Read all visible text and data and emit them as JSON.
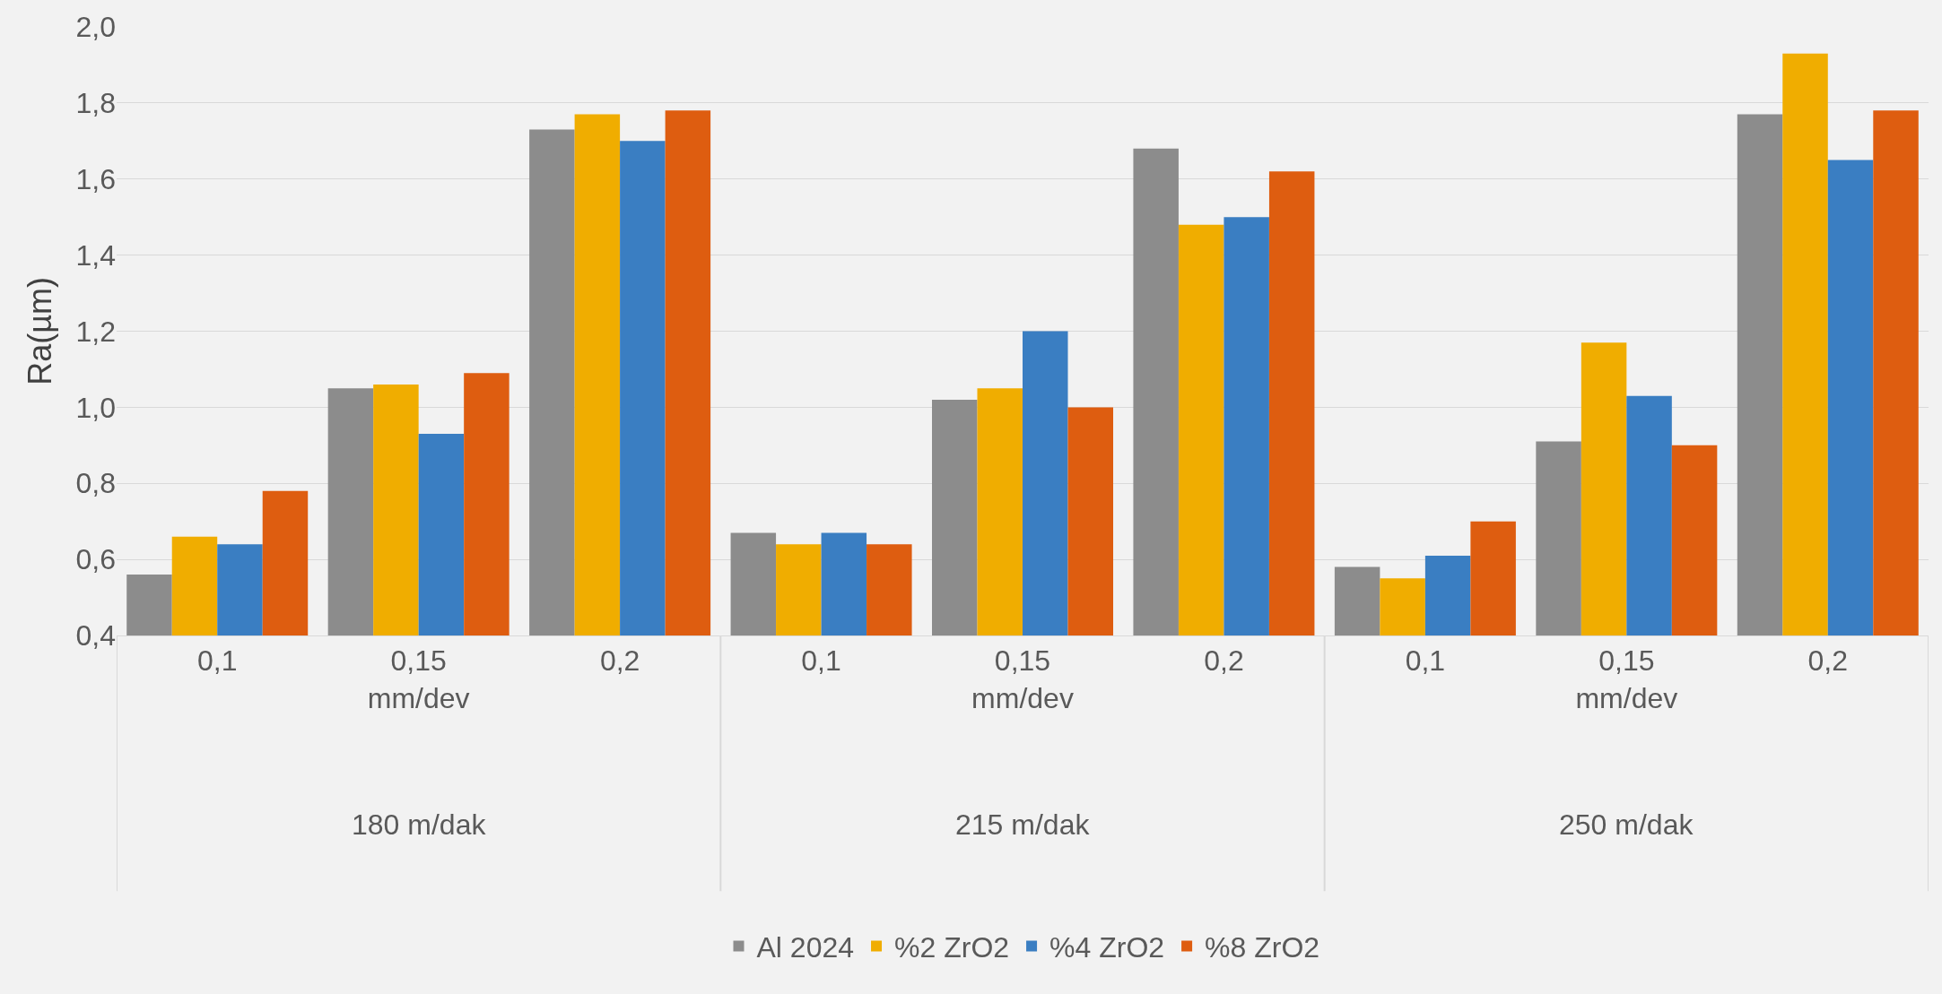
{
  "chart_data": {
    "type": "bar",
    "ylabel": "Ra(µm)",
    "categories": [
      "0,1",
      "0,15\nmm/dev",
      "0,2",
      "0,1",
      "0,15\nmm/dev",
      "0,2",
      "0,1",
      "0,15\nmm/dev",
      "0,2"
    ],
    "annotations": [
      "180 m/dak",
      "215 m/dak",
      "250 m/dak"
    ],
    "series": [
      {
        "name": "Al 2024",
        "color": "#8c8c8c",
        "values": [
          0.56,
          1.05,
          1.73,
          0.67,
          1.02,
          1.68,
          0.58,
          0.91,
          1.77
        ]
      },
      {
        "name": "%2 ZrO2",
        "color": "#f0ad00",
        "values": [
          0.66,
          1.06,
          1.77,
          0.64,
          1.05,
          1.48,
          0.55,
          1.17,
          1.93
        ]
      },
      {
        "name": "%4 ZrO2",
        "color": "#3a7ec2",
        "values": [
          0.64,
          0.93,
          1.7,
          0.67,
          1.2,
          1.5,
          0.61,
          1.03,
          1.65
        ]
      },
      {
        "name": "%8 ZrO2",
        "color": "#de5d10",
        "values": [
          0.78,
          1.09,
          1.78,
          0.64,
          1.0,
          1.62,
          0.7,
          0.9,
          1.78
        ]
      }
    ],
    "ylim": [
      0.4,
      2.0
    ],
    "yticks": [
      {
        "value": 0.4,
        "label": "0,4"
      },
      {
        "value": 0.6,
        "label": "0,6"
      },
      {
        "value": 0.8,
        "label": "0,8"
      },
      {
        "value": 1.0,
        "label": "1,0"
      },
      {
        "value": 1.2,
        "label": "1,2"
      },
      {
        "value": 1.4,
        "label": "1,4"
      },
      {
        "value": 1.6,
        "label": "1,6"
      },
      {
        "value": 1.8,
        "label": "1,8"
      },
      {
        "value": 2.0,
        "label": "2,0"
      }
    ],
    "grid": "y",
    "legend": "bottom"
  }
}
